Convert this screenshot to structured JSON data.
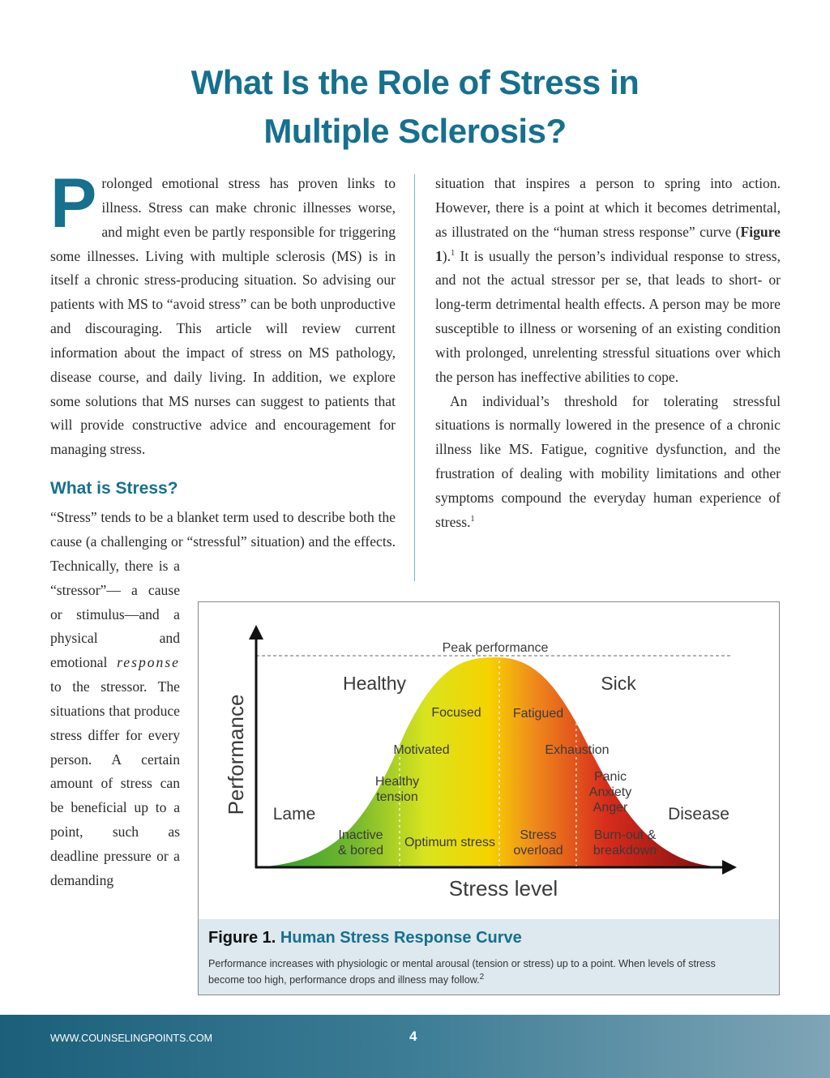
{
  "header": {
    "title": "What Is the Role of Stress in Multiple Sclerosis?"
  },
  "article": {
    "intro": {
      "drop_cap": "P",
      "text": "rolonged emotional stress has proven links to illness. Stress can make chronic illnesses worse, and might even be partly responsible for triggering some illnesses. Living with multiple sclerosis (MS) is in itself a chronic stress-producing situation. So advising our patients with MS to “avoid stress” can be both unproductive and discouraging. This article will review current information about the impact of stress on MS pathology, disease course, and daily living. In addition, we explore some solutions that MS nurses can suggest to patients that will provide constructive advice and encouragement for managing stress."
    },
    "heading": "What is Stress?",
    "stress_para": {
      "text": "“Stress” tends to be a blanket term used to describe both the cause (a challenging or “stressful” situation) and the effects. Technically, there is a “stressor”— a cause or stimulus—and a physical and emotional ",
      "emphasis": "response",
      "text_2": " to the stressor. The situations that produce stress differ for every person. A certain amount of stress can be beneficial up to a point, such as deadline pressure or a demanding"
    },
    "stress_para_continued": {
      "text_1": "situation that inspires a person to spring into action. However, there is a point at which it becomes detrimental, as illustrated on the “human stress response” curve (",
      "figure_ref": "Figure 1",
      "text_2": ").",
      "citation": "1",
      "text_3": " It is usually the person’s individual response to stress, and not the actual stressor per se, that leads to short- or long-term detrimental health effects. A person may be more susceptible to illness or worsening of an existing condition with prolonged, unrelenting stressful situations over which the person has ineffective abilities to cope."
    },
    "threshold_para": {
      "text": "An individual’s threshold for tolerating stressful situations is normally lowered in the presence of a chronic illness like MS. Fatigue, cognitive dysfunction, and the frustration of dealing with mobility limitations and other symptoms compound the everyday human experience of stress.",
      "citation": "1"
    }
  },
  "figure": {
    "labels": [
      [
        "Peak performance"
      ],
      [
        "Healthy"
      ],
      [
        "Sick"
      ],
      [
        "Focused"
      ],
      [
        "Fatigued"
      ],
      [
        "Motivated"
      ],
      [
        "Exhaustion"
      ],
      [
        "Healthy",
        "tension"
      ],
      [
        "Panic",
        "Anxiety",
        "Anger"
      ],
      [
        "Lame"
      ],
      [
        "Disease"
      ],
      [
        "Inactive",
        "& bored"
      ],
      [
        "Optimum stress"
      ],
      [
        "Stress",
        "overload"
      ],
      [
        "Burn-out &",
        "breakdown"
      ],
      [
        "Performance"
      ],
      [
        "Stress level"
      ]
    ],
    "caption": {
      "number": "Figure 1.",
      "title": "Human Stress Response Curve",
      "text": "Performance increases with physiologic or mental arousal (tension or stress) up to a point. When levels of stress become too high, performance drops and illness may follow.",
      "citation": "2"
    }
  },
  "footer": {
    "url": "WWW.COUNSELINGPOINTS.COM",
    "page": "4"
  }
}
